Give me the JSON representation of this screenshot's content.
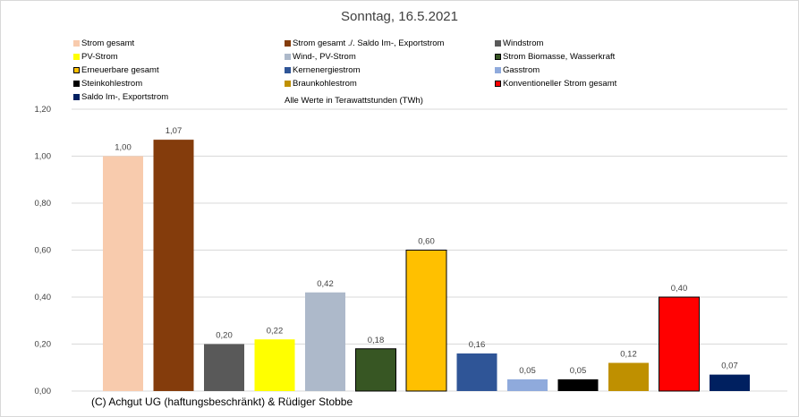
{
  "chart_data": {
    "type": "bar",
    "title": "Sonntag, 16.5.2021",
    "unit_note": "Alle Werte in Terawattstunden (TWh)",
    "ylim": [
      0,
      1.2
    ],
    "yticks": [
      "0,00",
      "0,20",
      "0,40",
      "0,60",
      "0,80",
      "1,00",
      "1,20"
    ],
    "grid": true,
    "legend_position": "top",
    "categories": [
      "Strom gesamt",
      "Strom gesamt ./. Saldo Im-, Exportstrom",
      "Windstrom",
      "PV-Strom",
      "Wind-, PV-Strom",
      "Strom Biomasse, Wasserkraft",
      "Erneuerbare gesamt",
      "Kernenergiestrom",
      "Gasstrom",
      "Steinkohlestrom",
      "Braunkohlestrom",
      "Konventioneller Strom gesamt",
      "Saldo Im-, Exportstrom"
    ],
    "values": [
      1.0,
      1.07,
      0.2,
      0.22,
      0.42,
      0.18,
      0.6,
      0.16,
      0.05,
      0.05,
      0.12,
      0.4,
      0.07
    ],
    "value_labels": [
      "1,00",
      "1,07",
      "0,20",
      "0,22",
      "0,42",
      "0,18",
      "0,60",
      "0,16",
      "0,05",
      "0,05",
      "0,12",
      "0,40",
      "0,07"
    ],
    "colors": [
      "#f8cbad",
      "#843c0c",
      "#595959",
      "#ffff00",
      "#adb9ca",
      "#375623",
      "#ffc000",
      "#2f5597",
      "#8faadc",
      "#000000",
      "#bf9000",
      "#ff0000",
      "#002060"
    ],
    "outlined": [
      false,
      false,
      false,
      false,
      false,
      true,
      true,
      false,
      false,
      false,
      false,
      true,
      false
    ]
  },
  "footer": {
    "copyright": "(C) Achgut UG (haftungsbeschränkt) & Rüdiger Stobbe"
  }
}
